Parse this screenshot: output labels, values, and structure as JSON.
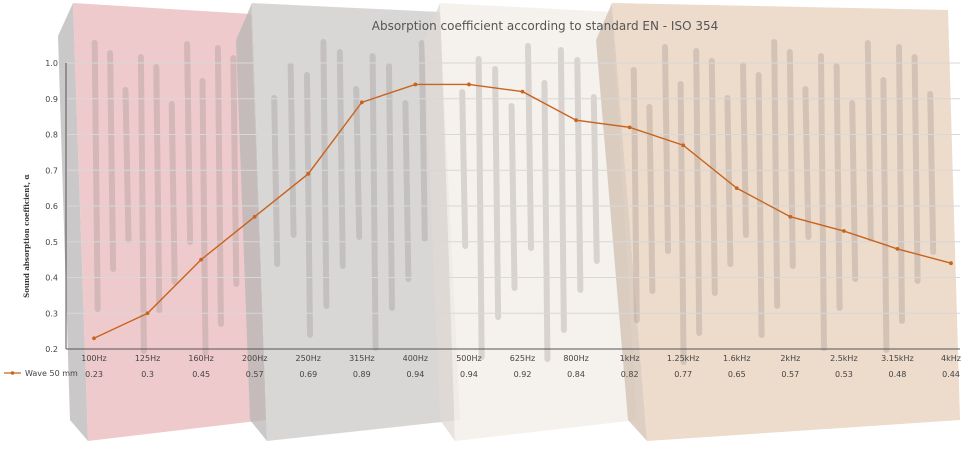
{
  "colors": {
    "line": "#c8641e",
    "grid": "#d8d8d8",
    "axis": "#555555",
    "text": "#444444",
    "panel_red": "#e7b4b6",
    "panel_grey": "#c9c6c6",
    "panel_white": "#f1ebe5",
    "panel_wood": "#e6cbb5",
    "panel_side": "#a9a6a6"
  },
  "chart_data": {
    "type": "line",
    "title": "Absorption coefficient according to standard EN - ISO 354",
    "xlabel": "",
    "ylabel": "Sound absorption coefficient, α",
    "ylim": [
      0.2,
      1.0
    ],
    "yticks": [
      "0.2",
      "0.3",
      "0.4",
      "0.5",
      "0.6",
      "0.7",
      "0.8",
      "0.9",
      "1.0"
    ],
    "categories": [
      "100Hz",
      "125Hz",
      "160Hz",
      "200Hz",
      "250Hz",
      "315Hz",
      "400Hz",
      "500Hz",
      "625Hz",
      "800Hz",
      "1kHz",
      "1.25kHz",
      "1.6kHz",
      "2kHz",
      "2.5kHz",
      "3.15kHz",
      "4kHz"
    ],
    "series": [
      {
        "name": "Wave 50 mm",
        "values": [
          0.23,
          0.3,
          0.45,
          0.57,
          0.69,
          0.89,
          0.94,
          0.94,
          0.92,
          0.84,
          0.82,
          0.77,
          0.65,
          0.57,
          0.53,
          0.48,
          0.44
        ],
        "labels": [
          "0.23",
          "0.3",
          "0.45",
          "0.57",
          "0.69",
          "0.89",
          "0.94",
          "0.94",
          "0.92",
          "0.84",
          "0.82",
          "0.77",
          "0.65",
          "0.57",
          "0.53",
          "0.48",
          "0.44"
        ]
      }
    ],
    "grid": true,
    "legend": "bottom-left"
  }
}
